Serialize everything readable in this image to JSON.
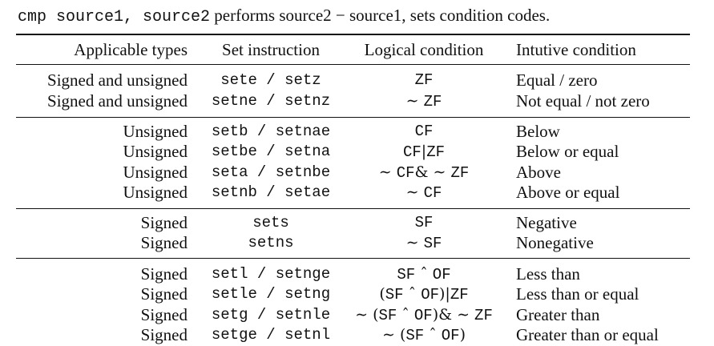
{
  "caption": {
    "code": "cmp source1, source2",
    "text": "performs source2 − source1, sets condition codes."
  },
  "headers": {
    "types": "Applicable types",
    "set": "Set instruction",
    "logical": "Logical condition",
    "intuitive": "Intutive condition"
  },
  "rows": [
    {
      "type": "Signed and unsigned",
      "set": "sete / setz",
      "logical": "ZF",
      "intuitive": "Equal / zero"
    },
    {
      "type": "Signed and unsigned",
      "set": "setne / setnz",
      "logical": "∼ ZF",
      "intuitive": "Not equal / not zero"
    },
    {
      "type": "Unsigned",
      "set": "setb / setnae",
      "logical": "CF",
      "intuitive": "Below"
    },
    {
      "type": "Unsigned",
      "set": "setbe / setna",
      "logical": "CF|ZF",
      "intuitive": "Below or equal"
    },
    {
      "type": "Unsigned",
      "set": "seta / setnbe",
      "logical": "∼ CF& ∼ ZF",
      "intuitive": "Above"
    },
    {
      "type": "Unsigned",
      "set": "setnb / setae",
      "logical": "∼ CF",
      "intuitive": "Above or equal"
    },
    {
      "type": "Signed",
      "set": "sets",
      "logical": "SF",
      "intuitive": "Negative"
    },
    {
      "type": "Signed",
      "set": "setns",
      "logical": "∼ SF",
      "intuitive": "Nonegative"
    },
    {
      "type": "Signed",
      "set": "setl / setnge",
      "logical": "SF ˆ OF",
      "intuitive": "Less than"
    },
    {
      "type": "Signed",
      "set": "setle / setng",
      "logical": "(SF ˆ OF)|ZF",
      "intuitive": "Less than or equal"
    },
    {
      "type": "Signed",
      "set": "setg / setnle",
      "logical": "∼ (SF ˆ OF)& ∼ ZF",
      "intuitive": "Greater than"
    },
    {
      "type": "Signed",
      "set": "setge / setnl",
      "logical": "∼ (SF ˆ OF)",
      "intuitive": "Greater than or equal"
    }
  ]
}
